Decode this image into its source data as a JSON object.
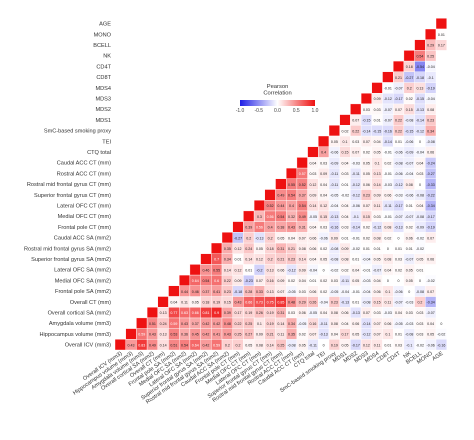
{
  "chart_data": {
    "type": "heatmap",
    "title": "",
    "xlabel": "",
    "ylabel": "",
    "variables": [
      "Overall ICV (mm3)",
      "Hippocampus volume (mm3)",
      "Amygdala volume (mm3)",
      "Overall cortical SA (mm2)",
      "Overall CT (mm)",
      "Frontal pole SA (mm2)",
      "Medial OFC SA (mm2)",
      "Lateral OFC SA (mm2)",
      "Superior frontal gyrus SA (mm2)",
      "Rostral mid frontal gyrus SA (mm2)",
      "Caudal ACC SA (mm2)",
      "Frontal pole CT (mm)",
      "Medial OFC CT (mm)",
      "Lateral OFC CT (mm)",
      "Superior frontal gyrus CT (mm)",
      "Rostral mid frontal gyrus CT (mm)",
      "Rostral ACC CT (mm)",
      "Caudal ACC CT (mm)",
      "CTQ total",
      "TEI",
      "SmC-based smoking proxy",
      "MDS1",
      "MDS2",
      "MDS3",
      "MDS4",
      "CD8T",
      "CD4T",
      "NK",
      "BCELL",
      "MONO",
      "AGE"
    ],
    "legend": {
      "title": "Pearson\nCorrelation",
      "ticks": [
        "-1.0",
        "-0.5",
        "0.0",
        "0.5",
        "1.0"
      ],
      "low_color": "#1f1fe6",
      "mid_color": "#ffffff",
      "high_color": "#ee1111"
    },
    "diagonal_color": "#ee1111",
    "values": [
      [
        0.43,
        0.83,
        0.49,
        0.14,
        0.51,
        0.54,
        0.64,
        0.42,
        0.59,
        0.2,
        0.2,
        0.05,
        0.08,
        0.14,
        0.25,
        -0.08,
        0.05,
        -0.11,
        0.0,
        0.19,
        0.05,
        -0.17,
        0.12,
        0.11,
        0.01,
        0.03,
        -0.1,
        -0.02,
        -0.06,
        -0.16
      ],
      [
        0.59,
        0.43,
        0.13,
        0.53,
        0.36,
        0.45,
        0.42,
        0.41,
        0.43,
        0.25,
        0.27,
        0.09,
        0.21,
        0.11,
        0.35,
        0.02,
        0.07,
        -0.13,
        0.04,
        0.17,
        0.05,
        -0.12,
        0.07,
        0.1,
        0.01,
        -0.08,
        0.03,
        0.05,
        -0.02
      ],
      [
        0.51,
        0.24,
        0.59,
        0.43,
        0.37,
        0.42,
        0.42,
        0.48,
        0.22,
        0.25,
        0.1,
        0.19,
        0.14,
        0.34,
        -0.05,
        0.16,
        -0.11,
        0.08,
        0.04,
        0.06,
        -0.14,
        0.07,
        0.06,
        -0.05,
        -0.03,
        0.03,
        0.04,
        0.0
      ],
      [
        0.13,
        0.77,
        0.63,
        0.66,
        0.81,
        0.9,
        0.39,
        0.17,
        0.19,
        0.26,
        0.19,
        0.31,
        0.03,
        0.06,
        -0.05,
        0.04,
        0.08,
        0.06,
        -0.13,
        0.07,
        0.03,
        -0.03,
        0.04,
        0.03,
        0.03,
        -0.07
      ],
      [
        0.04,
        0.11,
        0.05,
        0.18,
        0.19,
        0.15,
        0.43,
        0.66,
        0.73,
        0.75,
        0.85,
        0.48,
        0.29,
        0.26,
        -0.04,
        0.23,
        -0.13,
        0.01,
        -0.08,
        0.15,
        0.11,
        -0.07,
        -0.03,
        0.2,
        -0.34
      ],
      [
        0.44,
        0.46,
        0.37,
        0.41,
        0.23,
        -0.18,
        0.28,
        0.33,
        0.13,
        0.07,
        -0.05,
        0.03,
        0.06,
        0.02,
        -0.05,
        -0.04,
        -0.01,
        -0.04,
        0.06,
        0.1,
        -0.06,
        0.0,
        -0.08,
        0.07
      ],
      [
        0.64,
        0.54,
        0.6,
        0.22,
        0.09,
        -0.23,
        0.07,
        0.16,
        0.09,
        0.02,
        0.04,
        0.01,
        0.02,
        0.03,
        -0.11,
        0.05,
        -0.03,
        0.04,
        0.0,
        0.0,
        0.05,
        0.0,
        -0.02
      ],
      [
        0.46,
        0.55,
        0.14,
        0.12,
        0.01,
        -0.2,
        0.13,
        0.06,
        -0.12,
        0.09,
        -0.04,
        0.0,
        -0.02,
        0.02,
        0.04,
        -0.01,
        -0.07,
        0.04,
        0.02,
        0.05,
        0.01
      ],
      [
        0.7,
        0.34,
        0.01,
        0.14,
        0.12,
        0.2,
        0.21,
        0.23,
        0.14,
        0.04,
        0.05,
        -0.08,
        0.08,
        0.01,
        -0.04,
        0.05,
        0.08,
        0.03,
        -0.07,
        0.05,
        0.06
      ],
      [
        0.35,
        0.12,
        0.24,
        0.05,
        0.18,
        0.31,
        0.21,
        0.08,
        0.06,
        0.02,
        -0.08,
        0.09,
        -0.02,
        0.01,
        0.01,
        0.0,
        0.01,
        0.01,
        -0.02
      ],
      [
        -0.27,
        0.2,
        -0.13,
        0.2,
        0.05,
        0.04,
        0.07,
        0.06,
        -0.06,
        0.09,
        0.01,
        -0.01,
        0.02,
        0.08,
        0.02,
        0.0,
        0.06,
        -0.02,
        0.07
      ],
      [
        0.39,
        0.56,
        0.4,
        0.38,
        0.43,
        0.31,
        0.04,
        0.03,
        -0.16,
        0.03,
        -0.14,
        0.02,
        -0.12,
        0.08,
        -0.13,
        0.02,
        -0.09,
        -0.19
      ],
      [
        0.3,
        0.56,
        0.54,
        0.32,
        0.49,
        -0.05,
        0.15,
        -0.13,
        0.04,
        -0.1,
        0.15,
        0.03,
        -0.01,
        -0.07,
        -0.07,
        -0.08,
        -0.17
      ],
      [
        0.52,
        0.44,
        0.4,
        0.54,
        0.14,
        0.12,
        -0.04,
        0.04,
        -0.06,
        0.07,
        0.11,
        -0.11,
        -0.17,
        0.01,
        0.04,
        -0.34
      ],
      [
        0.49,
        0.54,
        0.37,
        0.09,
        0.04,
        -0.05,
        -0.02,
        -0.12,
        0.23,
        0.09,
        0.06,
        -0.03,
        -0.06,
        -0.08,
        -0.22
      ],
      [
        0.55,
        0.52,
        0.12,
        0.04,
        -0.11,
        0.01,
        -0.12,
        0.06,
        0.14,
        -0.03,
        -0.12,
        0.08,
        0.0,
        -0.33
      ],
      [
        0.57,
        0.03,
        0.09,
        -0.11,
        0.03,
        -0.11,
        0.05,
        0.13,
        -0.01,
        -0.06,
        -0.04,
        0.03,
        -0.27
      ],
      [
        0.04,
        0.03,
        -0.09,
        0.04,
        -0.03,
        0.05,
        0.1,
        0.02,
        -0.08,
        -0.07,
        0.04,
        -0.24
      ],
      [
        0.4,
        -0.06,
        0.15,
        0.07,
        0.02,
        0.05,
        -0.01,
        -0.06,
        -0.09,
        -0.04,
        0.06
      ],
      [
        0.05,
        0.1,
        0.03,
        0.07,
        0.04,
        -0.14,
        0.01,
        -0.06,
        0.0,
        -0.08
      ],
      [
        0.02,
        0.22,
        -0.14,
        -0.15,
        -0.16,
        0.22,
        -0.15,
        -0.12,
        0.34
      ],
      [
        0.07,
        -0.15,
        0.01,
        -0.07,
        0.22,
        -0.08,
        -0.14,
        0.23
      ],
      [
        0.03,
        0.03,
        -0.07,
        0.07,
        0.15,
        -0.13,
        0.08
      ],
      [
        0.09,
        -0.12,
        -0.17,
        0.02,
        -0.15,
        -0.04
      ],
      [
        -0.01,
        -0.07,
        0.2,
        0.13,
        -0.19
      ],
      [
        0.21,
        -0.27,
        -0.18,
        -0.1
      ],
      [
        0.18,
        -0.54,
        -0.04
      ],
      [
        0.54,
        0.25
      ],
      [
        0.29,
        0.17
      ],
      [
        0.01
      ]
    ]
  }
}
